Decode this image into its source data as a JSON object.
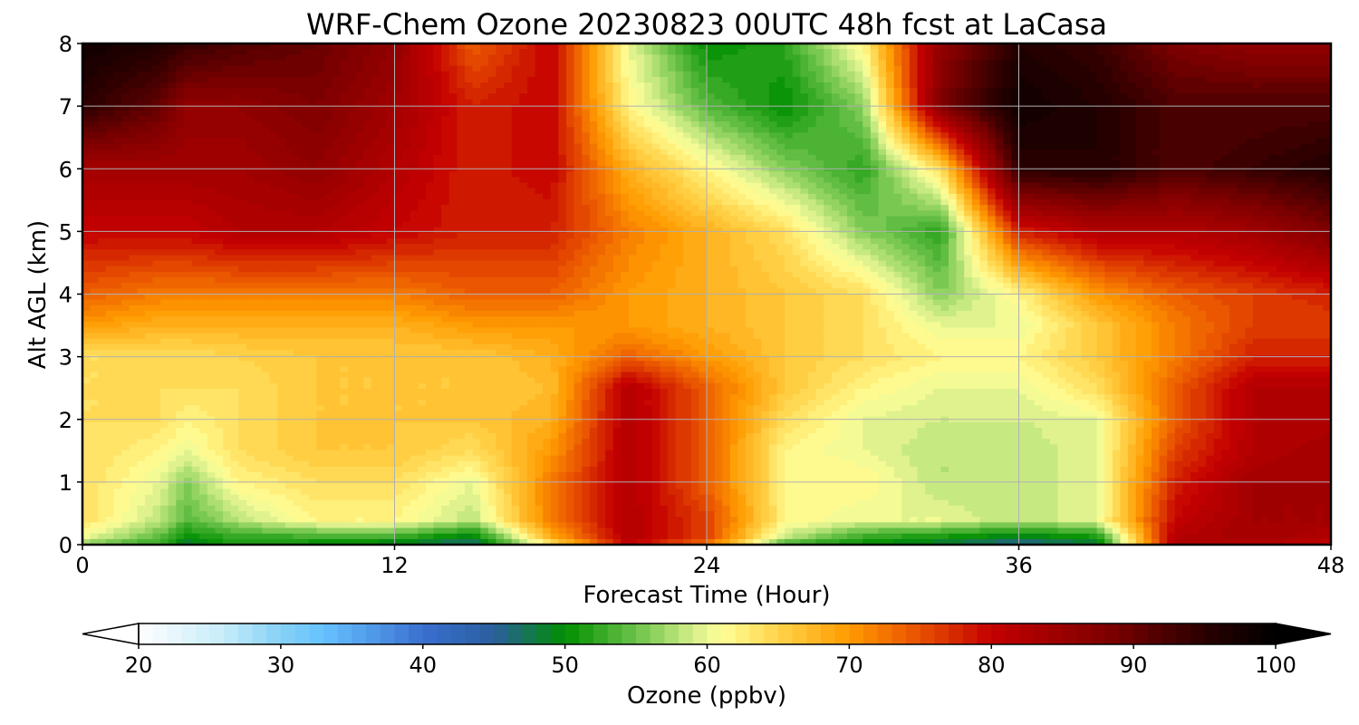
{
  "chart_data": {
    "type": "heatmap",
    "title": "WRF-Chem Ozone  20230823 00UTC 48h fcst at LaCasa",
    "xlabel": "Forecast Time (Hour)",
    "ylabel": "Alt AGL (km)",
    "xlim": [
      0,
      48
    ],
    "ylim": [
      0,
      8
    ],
    "x_ticks": [
      "0",
      "12",
      "24",
      "36",
      "48"
    ],
    "y_ticks": [
      "0",
      "1",
      "2",
      "3",
      "4",
      "5",
      "6",
      "7",
      "8"
    ],
    "grid": true,
    "colorbar": {
      "label": "Ozone  (ppbv)",
      "range": [
        20,
        100
      ],
      "extend": "both",
      "ticks": [
        "20",
        "30",
        "40",
        "50",
        "60",
        "70",
        "80",
        "90",
        "100"
      ],
      "colors": [
        {
          "v": 20,
          "c": "#ffffff"
        },
        {
          "v": 26,
          "c": "#c6ecfa"
        },
        {
          "v": 30,
          "c": "#86d1f5"
        },
        {
          "v": 33,
          "c": "#66c2ff"
        },
        {
          "v": 40,
          "c": "#3a6fd0"
        },
        {
          "v": 45,
          "c": "#2a5e9e"
        },
        {
          "v": 50,
          "c": "#008f00"
        },
        {
          "v": 55,
          "c": "#6cc24a"
        },
        {
          "v": 59,
          "c": "#d4ee8a"
        },
        {
          "v": 61,
          "c": "#ffff99"
        },
        {
          "v": 65,
          "c": "#ffd44a"
        },
        {
          "v": 70,
          "c": "#ff9a00"
        },
        {
          "v": 75,
          "c": "#e85000"
        },
        {
          "v": 80,
          "c": "#c40000"
        },
        {
          "v": 88,
          "c": "#800000"
        },
        {
          "v": 95,
          "c": "#2a0000"
        },
        {
          "v": 100,
          "c": "#000000"
        }
      ]
    },
    "x": [
      0,
      3,
      4,
      6,
      9,
      12,
      15,
      18,
      21,
      24,
      27,
      30,
      33,
      36,
      39,
      42,
      45,
      48
    ],
    "y": [
      0,
      0.1,
      0.4,
      1,
      1.5,
      2,
      2.5,
      3,
      3.5,
      4,
      5,
      6,
      7,
      8
    ],
    "z": [
      [
        55,
        52,
        48,
        52,
        50,
        48,
        46,
        62,
        80,
        72,
        52,
        50,
        48,
        45,
        48,
        82,
        82,
        80
      ],
      [
        60,
        54,
        50,
        52,
        52,
        52,
        48,
        68,
        82,
        76,
        58,
        52,
        50,
        48,
        50,
        82,
        84,
        82
      ],
      [
        64,
        58,
        54,
        58,
        62,
        62,
        58,
        72,
        82,
        76,
        62,
        60,
        60,
        58,
        60,
        80,
        84,
        84
      ],
      [
        64,
        60,
        56,
        62,
        64,
        64,
        60,
        72,
        82,
        74,
        62,
        62,
        58,
        58,
        60,
        78,
        84,
        84
      ],
      [
        64,
        62,
        60,
        64,
        66,
        66,
        64,
        70,
        82,
        74,
        62,
        60,
        58,
        58,
        60,
        76,
        82,
        84
      ],
      [
        64,
        64,
        62,
        64,
        66,
        66,
        66,
        68,
        82,
        74,
        64,
        60,
        59,
        59,
        60,
        74,
        82,
        82
      ],
      [
        64,
        64,
        64,
        64,
        66,
        66,
        66,
        67,
        82,
        74,
        66,
        62,
        60,
        60,
        64,
        74,
        82,
        82
      ],
      [
        64,
        64,
        64,
        65,
        66,
        66,
        66,
        68,
        74,
        70,
        66,
        64,
        62,
        62,
        66,
        72,
        78,
        78
      ],
      [
        70,
        68,
        68,
        68,
        68,
        68,
        70,
        70,
        70,
        68,
        66,
        64,
        60,
        60,
        66,
        72,
        76,
        76
      ],
      [
        74,
        72,
        72,
        72,
        72,
        72,
        74,
        74,
        70,
        68,
        66,
        64,
        56,
        62,
        70,
        74,
        76,
        78
      ],
      [
        80,
        80,
        80,
        82,
        82,
        80,
        78,
        78,
        72,
        68,
        64,
        56,
        52,
        78,
        82,
        82,
        84,
        88
      ],
      [
        84,
        84,
        84,
        84,
        86,
        82,
        78,
        80,
        68,
        62,
        56,
        52,
        64,
        95,
        96,
        92,
        94,
        96
      ],
      [
        95,
        90,
        86,
        86,
        88,
        84,
        78,
        80,
        62,
        54,
        50,
        56,
        88,
        98,
        96,
        92,
        92,
        92
      ],
      [
        98,
        96,
        94,
        92,
        90,
        86,
        74,
        80,
        60,
        50,
        52,
        62,
        86,
        96,
        94,
        88,
        86,
        86
      ]
    ]
  }
}
